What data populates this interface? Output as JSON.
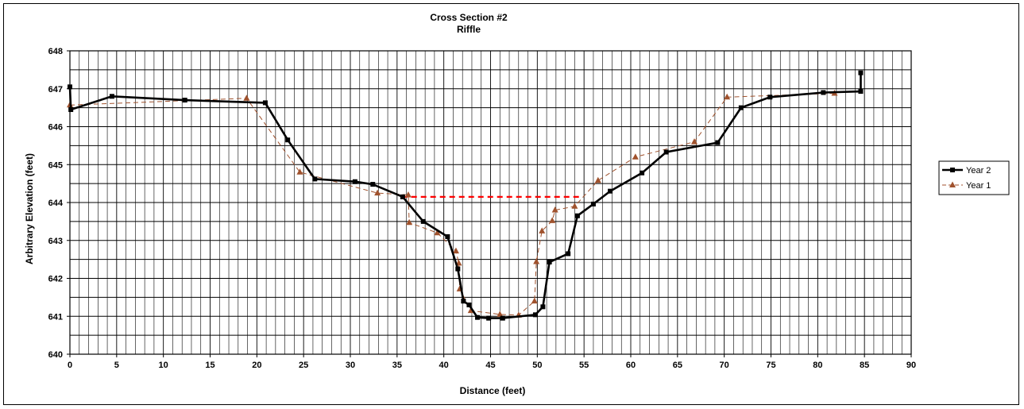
{
  "chart_data": {
    "type": "line",
    "title": "Cross Section #2",
    "subtitle": "Riffle",
    "xlabel": "Distance (feet)",
    "ylabel": "Arbitrary Elevation (feet)",
    "xlim": [
      0,
      90
    ],
    "ylim": [
      640,
      648
    ],
    "xticks": [
      "0",
      "5",
      "10",
      "15",
      "20",
      "25",
      "30",
      "35",
      "40",
      "45",
      "50",
      "55",
      "60",
      "65",
      "70",
      "75",
      "80",
      "85",
      "90"
    ],
    "yticks": [
      "640",
      "641",
      "642",
      "643",
      "644",
      "645",
      "646",
      "647",
      "648"
    ],
    "grid": true,
    "legend_position": "right",
    "series": [
      {
        "name": "Year 2",
        "color": "#000000",
        "marker": "square",
        "style": "solid",
        "points": [
          [
            0,
            647.05
          ],
          [
            0.1,
            646.45
          ],
          [
            4.5,
            646.8
          ],
          [
            12.3,
            646.7
          ],
          [
            20.9,
            646.63
          ],
          [
            23.3,
            645.65
          ],
          [
            26.2,
            644.62
          ],
          [
            30.5,
            644.55
          ],
          [
            32.4,
            644.48
          ],
          [
            35.6,
            644.15
          ],
          [
            37.8,
            643.5
          ],
          [
            40.4,
            643.1
          ],
          [
            41.5,
            642.25
          ],
          [
            42.1,
            641.4
          ],
          [
            42.7,
            641.3
          ],
          [
            43.6,
            640.97
          ],
          [
            44.8,
            640.95
          ],
          [
            46.3,
            640.95
          ],
          [
            49.8,
            641.04
          ],
          [
            50.6,
            641.25
          ],
          [
            51.3,
            642.43
          ],
          [
            53.3,
            642.65
          ],
          [
            54.3,
            643.65
          ],
          [
            56.0,
            643.96
          ],
          [
            57.8,
            644.3
          ],
          [
            61.2,
            644.78
          ],
          [
            63.8,
            645.33
          ],
          [
            69.3,
            645.58
          ],
          [
            71.8,
            646.5
          ],
          [
            74.9,
            646.78
          ],
          [
            80.6,
            646.9
          ],
          [
            84.6,
            646.93
          ],
          [
            84.6,
            647.42
          ]
        ]
      },
      {
        "name": "Year 1",
        "color": "#A0522D",
        "marker": "triangle",
        "style": "dashed",
        "points": [
          [
            0,
            646.57
          ],
          [
            18.9,
            646.75
          ],
          [
            24.6,
            644.8
          ],
          [
            32.9,
            644.25
          ],
          [
            36.2,
            644.2
          ],
          [
            36.3,
            643.47
          ],
          [
            39.3,
            643.2
          ],
          [
            41.3,
            642.72
          ],
          [
            41.6,
            642.4
          ],
          [
            41.7,
            641.72
          ],
          [
            42.9,
            641.15
          ],
          [
            46.0,
            641.05
          ],
          [
            48.0,
            641.03
          ],
          [
            49.7,
            641.4
          ],
          [
            49.9,
            642.44
          ],
          [
            50.5,
            643.25
          ],
          [
            51.6,
            643.52
          ],
          [
            51.9,
            643.8
          ],
          [
            54.0,
            643.9
          ],
          [
            56.5,
            644.58
          ],
          [
            60.5,
            645.2
          ],
          [
            66.8,
            645.6
          ],
          [
            70.3,
            646.78
          ],
          [
            81.8,
            646.88
          ]
        ]
      }
    ],
    "annotations": [
      {
        "type": "line",
        "color": "#FF0000",
        "style": "dashed",
        "x0": 35.5,
        "x1": 54.5,
        "y": 644.15
      }
    ]
  }
}
